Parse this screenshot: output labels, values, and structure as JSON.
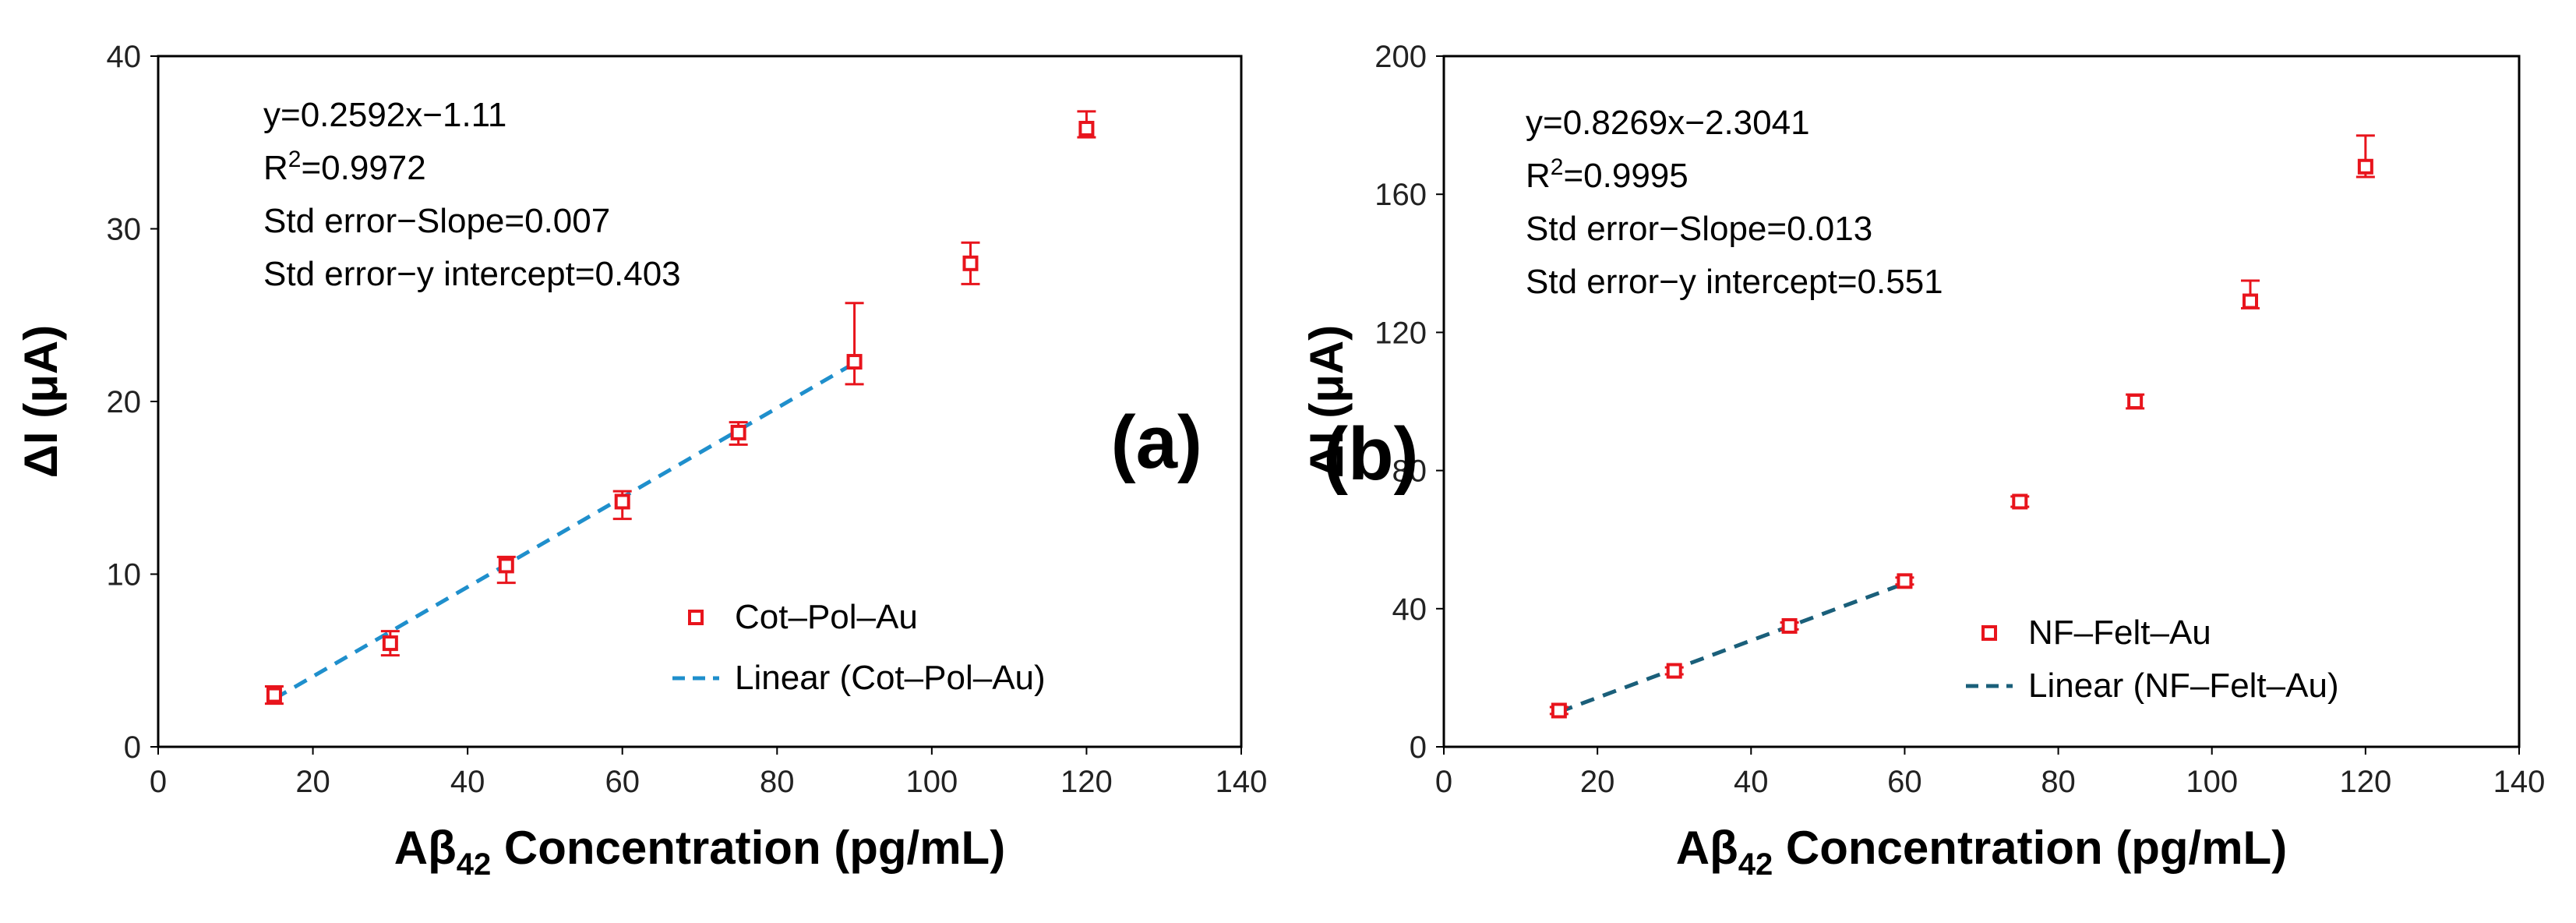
{
  "chart_data": [
    {
      "type": "scatter",
      "panel_label": "(a)",
      "xlabel": {
        "main": "Aβ",
        "sub": "42",
        "rest": " Concentration (pg/mL)"
      },
      "ylabel": "ΔI (μA)",
      "xlim": [
        0,
        140
      ],
      "ylim": [
        0,
        40
      ],
      "xticks": [
        0,
        20,
        40,
        60,
        80,
        100,
        120,
        140
      ],
      "yticks": [
        0,
        10,
        20,
        30,
        40
      ],
      "grid": false,
      "legend_position": "center-right",
      "series": [
        {
          "name": "Cot–Pol–Au",
          "marker": "open-square",
          "color": "#e8141c",
          "x": [
            15,
            30,
            45,
            60,
            75,
            90,
            105,
            120
          ],
          "y": [
            3.0,
            6.0,
            10.5,
            14.2,
            18.2,
            22.3,
            28.0,
            35.8
          ],
          "err_up": [
            0.5,
            0.7,
            0.5,
            0.6,
            0.6,
            3.4,
            1.2,
            1.0
          ],
          "err_down": [
            0.5,
            0.7,
            1.0,
            1.0,
            0.7,
            1.3,
            1.2,
            0.5
          ]
        }
      ],
      "fit": {
        "name": "Linear (Cot–Pol–Au)",
        "slope": 0.2592,
        "intercept": -1.11,
        "x_range": [
          15,
          90
        ],
        "color": "#1f8fcc",
        "style": "dashed"
      },
      "annotations": [
        "y=0.2592x−1.11",
        "R²=0.9972",
        "Std error−Slope=0.007",
        "Std error−y intercept=0.403"
      ],
      "annotation_parts": {
        "r2_base": "R",
        "r2_sup": "2",
        "r2_rest": "=0.9972"
      }
    },
    {
      "type": "scatter",
      "panel_label": "(b)",
      "xlabel": {
        "main": "Aβ",
        "sub": "42",
        "rest": " Concentration (pg/mL)"
      },
      "ylabel": "ΔI (μA)",
      "xlim": [
        0,
        140
      ],
      "ylim": [
        0,
        200
      ],
      "xticks": [
        0,
        20,
        40,
        60,
        80,
        100,
        120,
        140
      ],
      "yticks": [
        0,
        40,
        80,
        120,
        160,
        200
      ],
      "grid": false,
      "legend_position": "center-right",
      "series": [
        {
          "name": "NF–Felt–Au",
          "marker": "open-square",
          "color": "#e8141c",
          "x": [
            15,
            30,
            45,
            60,
            75,
            90,
            105,
            120
          ],
          "y": [
            10.5,
            22.0,
            35.0,
            48.0,
            71.0,
            100.0,
            129.0,
            168.0
          ],
          "err_up": [
            1.0,
            1.0,
            1.0,
            1.0,
            1.5,
            2.0,
            6.0,
            9.0
          ],
          "err_down": [
            1.0,
            1.0,
            1.0,
            1.0,
            1.5,
            2.0,
            2.0,
            3.0
          ]
        }
      ],
      "fit": {
        "name": "Linear (NF–Felt–Au)",
        "slope": 0.8269,
        "intercept": -2.3041,
        "x_range": [
          15,
          60
        ],
        "color": "#1a5f7a",
        "style": "dashed"
      },
      "annotations": [
        "y=0.8269x−2.3041",
        "R²=0.9995",
        "Std error−Slope=0.013",
        "Std error−y intercept=0.551"
      ],
      "annotation_parts": {
        "r2_base": "R",
        "r2_sup": "2",
        "r2_rest": "=0.9995"
      }
    }
  ]
}
